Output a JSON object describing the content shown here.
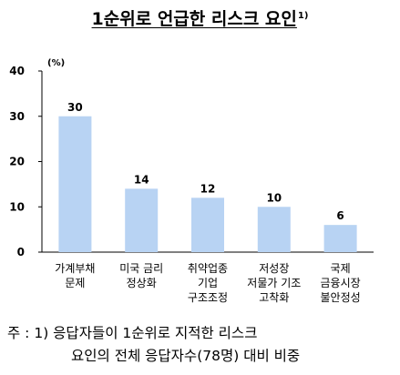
{
  "title": "1순위로 언급한 리스크 요인",
  "title_sup": "1)",
  "chart_data": {
    "type": "bar",
    "unit_label": "(%)",
    "categories": [
      "가계부채\n문제",
      "미국 금리\n정상화",
      "취약업종\n기업\n구조조정",
      "저성장\n저물가 기조\n고착화",
      "국제\n금융시장\n불안정성"
    ],
    "values": [
      30,
      14,
      12,
      10,
      6
    ],
    "value_labels": [
      "30",
      "14",
      "12",
      "10",
      "6"
    ],
    "ylim": [
      0,
      40
    ],
    "yticks": [
      0,
      10,
      20,
      30,
      40
    ],
    "bar_color": "#b8d3f3",
    "grid": false
  },
  "note": {
    "line1": "주 : 1) 응답자들이 1순위로 지적한 리스크",
    "line2": "요인의 전체 응답자수(78명) 대비 비중"
  }
}
